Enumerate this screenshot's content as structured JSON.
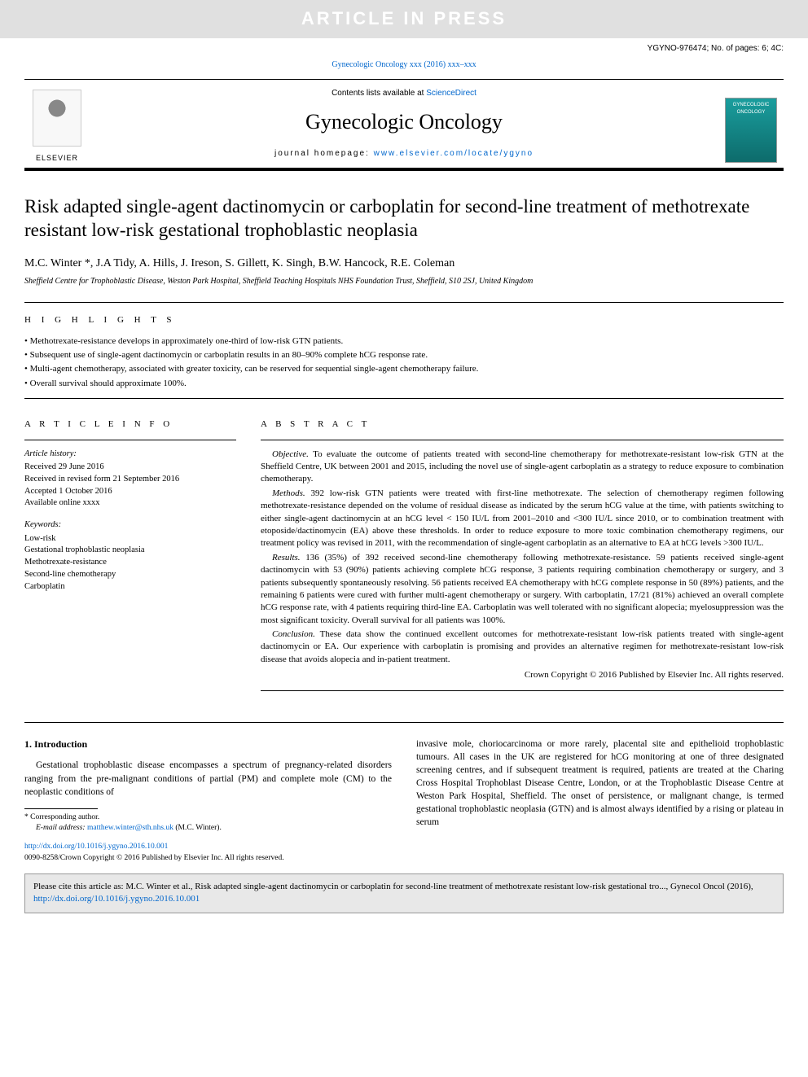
{
  "banner": {
    "text": "ARTICLE IN PRESS"
  },
  "header": {
    "code": "YGYNO-976474; No. of pages: 6; 4C:",
    "ref_prefix": "Gynecologic Oncology xxx (2016) xxx–xxx",
    "ref_link_text": "Gynecologic Oncology xxx (2016) xxx–xxx"
  },
  "masthead": {
    "contents_prefix": "Contents lists available at ",
    "contents_link": "ScienceDirect",
    "journal": "Gynecologic Oncology",
    "homepage_prefix": "journal homepage: ",
    "homepage_link": "www.elsevier.com/locate/ygyno",
    "elsevier_label": "ELSEVIER",
    "cover_text": "GYNECOLOGIC ONCOLOGY"
  },
  "article": {
    "title": "Risk adapted single-agent dactinomycin or carboplatin for second-line treatment of methotrexate resistant low-risk gestational trophoblastic neoplasia",
    "authors": "M.C. Winter *, J.A Tidy, A. Hills, J. Ireson, S. Gillett, K. Singh, B.W. Hancock, R.E. Coleman",
    "affiliation": "Sheffield Centre for Trophoblastic Disease, Weston Park Hospital, Sheffield Teaching Hospitals NHS Foundation Trust, Sheffield, S10 2SJ, United Kingdom"
  },
  "highlights_label": "H I G H L I G H T S",
  "highlights": [
    "Methotrexate-resistance develops in approximately one-third of low-risk GTN patients.",
    "Subsequent use of single-agent dactinomycin or carboplatin results in an 80–90% complete hCG response rate.",
    "Multi-agent chemotherapy, associated with greater toxicity, can be reserved for sequential single-agent chemotherapy failure.",
    "Overall survival should approximate 100%."
  ],
  "article_info_label": "A R T I C L E   I N F O",
  "article_info": {
    "history_label": "Article history:",
    "history": [
      "Received 29 June 2016",
      "Received in revised form 21 September 2016",
      "Accepted 1 October 2016",
      "Available online xxxx"
    ],
    "keywords_label": "Keywords:",
    "keywords": [
      "Low-risk",
      "Gestational trophoblastic neoplasia",
      "Methotrexate-resistance",
      "Second-line chemotherapy",
      "Carboplatin"
    ]
  },
  "abstract_label": "A B S T R A C T",
  "abstract": {
    "objective_head": "Objective.",
    "objective": " To evaluate the outcome of patients treated with second-line chemotherapy for methotrexate-resistant low-risk GTN at the Sheffield Centre, UK between 2001 and 2015, including the novel use of single-agent carboplatin as a strategy to reduce exposure to combination chemotherapy.",
    "methods_head": "Methods.",
    "methods": " 392 low-risk GTN patients were treated with first-line methotrexate. The selection of chemotherapy regimen following methotrexate-resistance depended on the volume of residual disease as indicated by the serum hCG value at the time, with patients switching to either single-agent dactinomycin at an hCG level < 150 IU/L from 2001–2010 and <300 IU/L since 2010, or to combination treatment with etoposide/dactinomycin (EA) above these thresholds. In order to reduce exposure to more toxic combination chemotherapy regimens, our treatment policy was revised in 2011, with the recommendation of single-agent carboplatin as an alternative to EA at hCG levels >300 IU/L.",
    "results_head": "Results.",
    "results": " 136 (35%) of 392 received second-line chemotherapy following methotrexate-resistance. 59 patients received single-agent dactinomycin with 53 (90%) patients achieving complete hCG response, 3 patients requiring combination chemotherapy or surgery, and 3 patients subsequently spontaneously resolving. 56 patients received EA chemotherapy with hCG complete response in 50 (89%) patients, and the remaining 6 patients were cured with further multi-agent chemotherapy or surgery. With carboplatin, 17/21 (81%) achieved an overall complete hCG response rate, with 4 patients requiring third-line EA. Carboplatin was well tolerated with no significant alopecia; myelosuppression was the most significant toxicity. Overall survival for all patients was 100%.",
    "conclusion_head": "Conclusion.",
    "conclusion": " These data show the continued excellent outcomes for methotrexate-resistant low-risk patients treated with single-agent dactinomycin or EA. Our experience with carboplatin is promising and provides an alternative regimen for methotrexate-resistant low-risk disease that avoids alopecia and in-patient treatment.",
    "copyright": "Crown Copyright © 2016 Published by Elsevier Inc. All rights reserved."
  },
  "body": {
    "intro_heading": "1. Introduction",
    "col1_p1": "Gestational trophoblastic disease encompasses a spectrum of pregnancy-related disorders ranging from the pre-malignant conditions of partial (PM) and complete mole (CM) to the neoplastic conditions of",
    "col2_p1": "invasive mole, choriocarcinoma or more rarely, placental site and epithelioid trophoblastic tumours. All cases in the UK are registered for hCG monitoring at one of three designated screening centres, and if subsequent treatment is required, patients are treated at the Charing Cross Hospital Trophoblast Disease Centre, London, or at the Trophoblastic Disease Centre at Weston Park Hospital, Sheffield. The onset of persistence, or malignant change, is termed gestational trophoblastic neoplasia (GTN) and is almost always identified by a rising or plateau in serum",
    "corresp_label": "* Corresponding author.",
    "email_label": "E-mail address: ",
    "email": "matthew.winter@sth.nhs.uk",
    "email_suffix": " (M.C. Winter)."
  },
  "footer": {
    "doi": "http://dx.doi.org/10.1016/j.ygyno.2016.10.001",
    "issn_line": "0090-8258/Crown Copyright © 2016 Published by Elsevier Inc. All rights reserved."
  },
  "citebox": {
    "text_prefix": "Please cite this article as: M.C. Winter et al., Risk adapted single-agent dactinomycin or carboplatin for second-line treatment of methotrexate resistant low-risk gestational tro..., Gynecol Oncol (2016), ",
    "link": "http://dx.doi.org/10.1016/j.ygyno.2016.10.001"
  },
  "colors": {
    "link": "#0066cc",
    "banner_bg": "#e0e0e0",
    "banner_fg": "#ffffff",
    "citebox_bg": "#e8e8e8",
    "citebox_border": "#999999",
    "cover_top": "#1a9e9e",
    "cover_bottom": "#0d6b6b"
  }
}
